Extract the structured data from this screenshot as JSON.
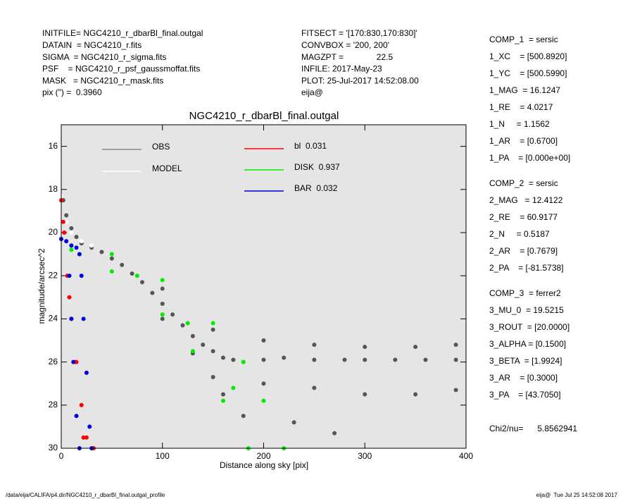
{
  "info_left": [
    "INITFILE= NGC4210_r_dbarBl_final.outgal",
    "DATAIN  = NGC4210_r.fits",
    "SIGMA  = NGC4210_r_sigma.fits",
    "PSF    = NGC4210_r_psf_gaussmoffat.fits",
    "MASK   = NGC4210_r_mask.fits",
    "pix (\") =  0.3960"
  ],
  "info_mid": [
    "FITSECT = '[170:830,170:830]'",
    "CONVBOX = '200, 200'",
    "MAGZPT =              22.5",
    "INFILE: 2017-May-23",
    "PLOT: 25-Jul-2017 14:52:08.00",
    "eija@"
  ],
  "params": [
    [
      "COMP_1  = sersic",
      "1_XC    = [500.8920]",
      "1_YC    = [500.5990]",
      "1_MAG  = 16.1247",
      "1_RE    = 4.0217",
      "1_N     = 1.1562",
      "1_AR    = [0.6700]",
      "1_PA    = [0.000e+00]"
    ],
    [
      "COMP_2  = sersic",
      "2_MAG   = 12.4122",
      "2_RE    = 60.9177",
      "2_N     = 0.5187",
      "2_AR    = [0.7679]",
      "2_PA    = [-81.5738]"
    ],
    [
      "COMP_3  = ferrer2",
      "3_MU_0  = 19.5215",
      "3_ROUT  = [20.0000]",
      "3_ALPHA = [0.1500]",
      "3_BETA  = [1.9924]",
      "3_AR    = [0.3000]",
      "3_PA    = [43.7050]"
    ],
    [
      "Chi2/nu=      5.8562941"
    ]
  ],
  "footer_left": "/data/eija/CALIFA/p4.dir/NGC4210_r_dbarBl_final.outgal_profile",
  "footer_right": "eija@  Tue Jul 25 14:52:08 2017",
  "chart_data": {
    "type": "scatter",
    "title": "NGC4210_r_dbarBl_final.outgal",
    "xlabel": "Distance along sky [pix]",
    "ylabel": "magnitude/arcsec^2",
    "xlim": [
      0,
      400
    ],
    "ylim": [
      30,
      15
    ],
    "xticks": [
      0,
      100,
      200,
      300,
      400
    ],
    "yticks": [
      16,
      18,
      20,
      22,
      24,
      26,
      28,
      30
    ],
    "series": [
      {
        "name": "OBS",
        "color": "#555555",
        "legend_color": "#888888",
        "x": [
          2,
          5,
          10,
          15,
          20,
          30,
          40,
          50,
          60,
          70,
          80,
          90,
          100,
          110,
          120,
          130,
          140,
          150,
          160,
          170,
          180,
          200,
          220,
          250,
          280,
          300,
          330,
          360,
          390,
          100,
          100,
          150,
          150,
          200,
          200,
          250,
          250,
          300,
          300,
          350,
          350,
          390,
          390,
          180,
          230,
          270,
          130,
          160
        ],
        "y": [
          18.5,
          19.2,
          19.8,
          20.2,
          20.5,
          20.7,
          20.9,
          21.2,
          21.5,
          21.9,
          22.3,
          22.8,
          23.3,
          23.8,
          24.3,
          24.8,
          25.2,
          25.5,
          25.8,
          25.9,
          26.0,
          25.9,
          25.8,
          25.9,
          25.9,
          25.9,
          25.9,
          25.9,
          25.9,
          22.6,
          24.0,
          24.5,
          26.7,
          25.0,
          27.0,
          25.2,
          27.2,
          25.3,
          27.5,
          25.3,
          27.5,
          25.2,
          27.3,
          28.5,
          28.8,
          29.3,
          25.6,
          27.5
        ]
      },
      {
        "name": "MODEL",
        "color": "#ffffff",
        "legend_color": "#ffffff",
        "x": [
          0,
          5,
          10,
          20,
          30
        ],
        "y": [
          18.3,
          19.5,
          20.0,
          20.4,
          20.6
        ]
      },
      {
        "name": "bl  0.031",
        "color": "#ff0000",
        "legend_color": "#ff0000",
        "x": [
          0,
          3,
          6,
          10,
          15,
          20,
          25,
          32,
          2,
          8,
          14,
          22
        ],
        "y": [
          18.5,
          20,
          22,
          24,
          26,
          28,
          29.5,
          30,
          19.5,
          23,
          26,
          29.5
        ]
      },
      {
        "name": "DISK  0.937",
        "color": "#00ee00",
        "legend_color": "#00ee00",
        "x": [
          10,
          50,
          100,
          150,
          180,
          200,
          220,
          10,
          50,
          100,
          130,
          160,
          185,
          75,
          125,
          170
        ],
        "y": [
          20.6,
          21.0,
          22.2,
          24.2,
          26.0,
          27.8,
          30,
          20.8,
          21.8,
          23.8,
          25.5,
          27.8,
          30,
          22.0,
          24.2,
          27.2
        ]
      },
      {
        "name": "BAR  0.032",
        "color": "#0000dd",
        "legend_color": "#0000dd",
        "x": [
          0,
          10,
          15,
          18,
          20,
          22,
          25,
          28,
          30,
          5,
          8,
          10,
          12,
          15,
          18
        ],
        "y": [
          20.3,
          20.6,
          20.7,
          21,
          22,
          24,
          26.5,
          29,
          30,
          20.4,
          22,
          24,
          26,
          28.5,
          30
        ]
      }
    ]
  }
}
